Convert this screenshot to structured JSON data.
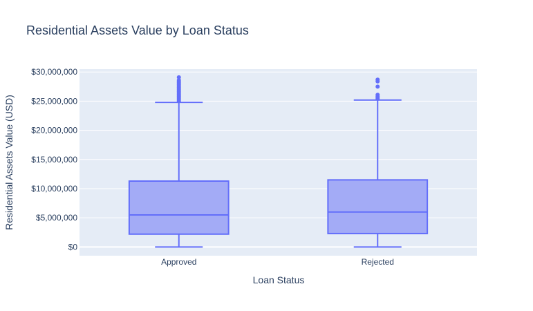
{
  "chart_data": {
    "type": "box",
    "title": "Residential Assets Value by Loan Status",
    "xlabel": "Loan Status",
    "ylabel": "Residential Assets Value (USD)",
    "categories": [
      "Approved",
      "Rejected"
    ],
    "ylim": [
      -1500000,
      30500000
    ],
    "yticks": [
      0,
      5000000,
      10000000,
      15000000,
      20000000,
      25000000,
      30000000
    ],
    "ytick_labels": [
      "$0",
      "$5,000,000",
      "$10,000,000",
      "$15,000,000",
      "$20,000,000",
      "$25,000,000",
      "$30,000,000"
    ],
    "grid": true,
    "colors": {
      "box_line": "#636efa",
      "box_fill": "#a3abf6",
      "plot_bg": "#e5ecf6"
    },
    "boxes": [
      {
        "name": "Approved",
        "min": 0,
        "q1": 2200000,
        "median": 5500000,
        "q3": 11300000,
        "upper_fence": 24800000,
        "outliers": [
          25000000,
          25200000,
          25400000,
          25600000,
          25800000,
          26000000,
          26200000,
          26400000,
          26600000,
          26800000,
          27000000,
          27200000,
          27400000,
          27600000,
          27800000,
          28000000,
          28200000,
          28400000,
          28600000,
          29100000
        ]
      },
      {
        "name": "Rejected",
        "min": 0,
        "q1": 2300000,
        "median": 6000000,
        "q3": 11500000,
        "upper_fence": 25200000,
        "outliers": [
          25400000,
          25600000,
          25800000,
          26100000,
          27500000,
          28400000,
          28700000
        ]
      }
    ]
  }
}
